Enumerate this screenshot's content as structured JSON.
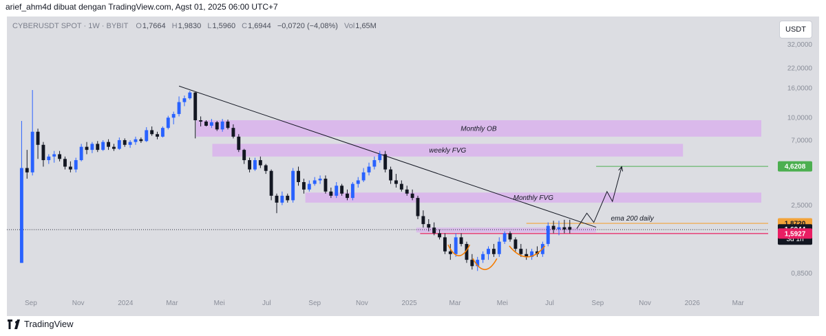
{
  "header": {
    "author_line": "arief_ahm4d dibuat dengan TradingView.com, Agst 01, 2025 06:00 UTC+7"
  },
  "legend": {
    "symbol": "CYBERUSDT SPOT · 1W · BYBIT",
    "o_label": "O",
    "open": "1,7664",
    "h_label": "H",
    "high": "1,9830",
    "l_label": "L",
    "low": "1,5960",
    "c_label": "C",
    "close": "1,6944",
    "change": "−0,0720 (−4,08%)",
    "vol_label": "Vol",
    "volume": "1,65M"
  },
  "currency_button": "USDT",
  "footer": {
    "brand": "TradingView"
  },
  "colors": {
    "up": "#2962ff",
    "down": "#131722",
    "zone": "#d9b3ec",
    "trendline": "#131722",
    "ema": "#f2a33a",
    "support": "#e91e63",
    "target": "#4caf50",
    "pattern": "#f57c00",
    "background": "#dcdde2"
  },
  "chart_data": {
    "type": "candlestick",
    "y_scale": "log",
    "y_ticks": [
      {
        "value": 32,
        "label": "32,0000"
      },
      {
        "value": 22,
        "label": "22,0000"
      },
      {
        "value": 16,
        "label": "16,0000"
      },
      {
        "value": 10,
        "label": "10,0000"
      },
      {
        "value": 7,
        "label": "7,0000"
      },
      {
        "value": 2.5,
        "label": "2,5000"
      },
      {
        "value": 0.85,
        "label": "0,8500"
      }
    ],
    "x_ticks": [
      {
        "date": "2023-09",
        "label": "Sep"
      },
      {
        "date": "2023-11",
        "label": "Nov"
      },
      {
        "date": "2024-01",
        "label": "2024"
      },
      {
        "date": "2024-03",
        "label": "Mar"
      },
      {
        "date": "2024-05",
        "label": "Mei"
      },
      {
        "date": "2024-07",
        "label": "Jul"
      },
      {
        "date": "2024-09",
        "label": "Sep"
      },
      {
        "date": "2024-11",
        "label": "Nov"
      },
      {
        "date": "2025-01",
        "label": "2025"
      },
      {
        "date": "2025-03",
        "label": "Mar"
      },
      {
        "date": "2025-05",
        "label": "Mei"
      },
      {
        "date": "2025-07",
        "label": "Jul"
      },
      {
        "date": "2025-09",
        "label": "Sep"
      },
      {
        "date": "2025-11",
        "label": "Nov"
      },
      {
        "date": "2026-01",
        "label": "2026"
      },
      {
        "date": "2026-03",
        "label": "Mar"
      }
    ],
    "price_labels": [
      {
        "value": 4.6208,
        "text": "4,6208",
        "role": "target"
      },
      {
        "value": 1.872,
        "text": "1,8720",
        "role": "ema"
      },
      {
        "value": 1.6944,
        "text": "1,6944",
        "sub": "3d 1h",
        "role": "last"
      },
      {
        "value": 1.5927,
        "text": "1,5927",
        "role": "support"
      }
    ],
    "zones": [
      {
        "label": "Monthly OB",
        "from": "2024-04-01",
        "to": "2026-03-31",
        "top": 9.6,
        "bottom": 7.4
      },
      {
        "label": "weekly FVG",
        "from": "2024-04-22",
        "to": "2025-12-20",
        "top": 6.6,
        "bottom": 5.4
      },
      {
        "label": "Monthly FVG",
        "from": "2024-08-20",
        "to": "2026-03-31",
        "top": 3.05,
        "bottom": 2.6
      },
      {
        "label": "",
        "from": "2025-01-10",
        "to": "2025-08-30",
        "top": 1.75,
        "bottom": 1.62
      }
    ],
    "trendline": {
      "start": {
        "date": "2024-03-10",
        "value": 16.5
      },
      "end": {
        "date": "2025-08-30",
        "value": 1.76
      }
    },
    "ema_line": {
      "label": "ema 200 daily",
      "value": 1.872,
      "from": "2025-06-01"
    },
    "support_line": {
      "value": 1.5927,
      "from": "2025-01-15"
    },
    "target_line": {
      "value": 4.6208,
      "from": "2025-08-30"
    },
    "last_price_line": 1.6944,
    "projection": [
      {
        "date": "2025-08-05",
        "value": 1.72
      },
      {
        "date": "2025-08-18",
        "value": 2.2
      },
      {
        "date": "2025-08-27",
        "value": 1.9
      },
      {
        "date": "2025-09-13",
        "value": 3.1
      },
      {
        "date": "2025-09-20",
        "value": 2.65
      },
      {
        "date": "2025-10-02",
        "value": 4.6
      }
    ],
    "pattern_arcs": [
      {
        "from": "2025-02-20",
        "to": "2025-03-20",
        "bottom": 1.12
      },
      {
        "from": "2025-03-24",
        "to": "2025-04-24",
        "bottom": 0.9
      },
      {
        "from": "2025-05-10",
        "to": "2025-06-25",
        "bottom": 1.1
      }
    ],
    "candles": [
      {
        "t": "2023-08-20",
        "o": 1.0,
        "h": 9.5,
        "l": 1.0,
        "c": 4.5
      },
      {
        "t": "2023-08-27",
        "o": 4.5,
        "h": 6.0,
        "l": 3.8,
        "c": 4.2
      },
      {
        "t": "2023-09-03",
        "o": 4.2,
        "h": 15.5,
        "l": 4.0,
        "c": 8.0
      },
      {
        "t": "2023-09-10",
        "o": 8.0,
        "h": 8.4,
        "l": 5.2,
        "c": 6.5
      },
      {
        "t": "2023-09-17",
        "o": 6.5,
        "h": 6.8,
        "l": 4.6,
        "c": 5.1
      },
      {
        "t": "2023-09-24",
        "o": 5.1,
        "h": 5.6,
        "l": 4.8,
        "c": 5.4
      },
      {
        "t": "2023-10-01",
        "o": 5.4,
        "h": 5.9,
        "l": 4.9,
        "c": 5.6
      },
      {
        "t": "2023-10-08",
        "o": 5.6,
        "h": 5.9,
        "l": 5.0,
        "c": 5.2
      },
      {
        "t": "2023-10-15",
        "o": 5.2,
        "h": 5.4,
        "l": 4.4,
        "c": 4.6
      },
      {
        "t": "2023-10-22",
        "o": 4.6,
        "h": 5.0,
        "l": 4.2,
        "c": 4.4
      },
      {
        "t": "2023-10-29",
        "o": 4.4,
        "h": 5.3,
        "l": 4.2,
        "c": 5.1
      },
      {
        "t": "2023-11-05",
        "o": 5.1,
        "h": 6.6,
        "l": 5.0,
        "c": 6.3
      },
      {
        "t": "2023-11-12",
        "o": 6.3,
        "h": 6.8,
        "l": 5.6,
        "c": 6.0
      },
      {
        "t": "2023-11-19",
        "o": 6.0,
        "h": 6.8,
        "l": 5.7,
        "c": 6.6
      },
      {
        "t": "2023-11-26",
        "o": 6.6,
        "h": 6.9,
        "l": 5.8,
        "c": 6.0
      },
      {
        "t": "2023-12-03",
        "o": 6.0,
        "h": 7.0,
        "l": 5.9,
        "c": 6.8
      },
      {
        "t": "2023-12-10",
        "o": 6.8,
        "h": 7.1,
        "l": 6.0,
        "c": 6.3
      },
      {
        "t": "2023-12-17",
        "o": 6.3,
        "h": 6.6,
        "l": 5.9,
        "c": 6.1
      },
      {
        "t": "2023-12-24",
        "o": 6.1,
        "h": 7.3,
        "l": 6.0,
        "c": 7.0
      },
      {
        "t": "2023-12-31",
        "o": 7.0,
        "h": 7.2,
        "l": 6.3,
        "c": 6.5
      },
      {
        "t": "2024-01-07",
        "o": 6.5,
        "h": 7.0,
        "l": 6.2,
        "c": 6.8
      },
      {
        "t": "2024-01-14",
        "o": 6.8,
        "h": 7.4,
        "l": 6.5,
        "c": 7.1
      },
      {
        "t": "2024-01-21",
        "o": 7.1,
        "h": 7.3,
        "l": 6.7,
        "c": 6.9
      },
      {
        "t": "2024-01-28",
        "o": 6.9,
        "h": 8.6,
        "l": 6.8,
        "c": 8.2
      },
      {
        "t": "2024-02-04",
        "o": 8.2,
        "h": 8.7,
        "l": 7.5,
        "c": 7.7
      },
      {
        "t": "2024-02-11",
        "o": 7.7,
        "h": 8.0,
        "l": 7.1,
        "c": 7.4
      },
      {
        "t": "2024-02-18",
        "o": 7.4,
        "h": 8.7,
        "l": 7.3,
        "c": 8.5
      },
      {
        "t": "2024-02-25",
        "o": 8.5,
        "h": 10.3,
        "l": 8.3,
        "c": 10.0
      },
      {
        "t": "2024-03-03",
        "o": 10.0,
        "h": 11.0,
        "l": 9.0,
        "c": 10.6
      },
      {
        "t": "2024-03-10",
        "o": 10.6,
        "h": 14.0,
        "l": 10.2,
        "c": 12.8
      },
      {
        "t": "2024-03-17",
        "o": 12.8,
        "h": 14.2,
        "l": 12.0,
        "c": 13.6
      },
      {
        "t": "2024-03-24",
        "o": 13.6,
        "h": 15.3,
        "l": 13.3,
        "c": 14.9
      },
      {
        "t": "2024-03-31",
        "o": 14.9,
        "h": 15.0,
        "l": 7.2,
        "c": 9.6
      },
      {
        "t": "2024-04-07",
        "o": 9.6,
        "h": 10.2,
        "l": 8.7,
        "c": 9.4
      },
      {
        "t": "2024-04-14",
        "o": 9.4,
        "h": 9.6,
        "l": 8.7,
        "c": 8.8
      },
      {
        "t": "2024-04-21",
        "o": 8.8,
        "h": 9.8,
        "l": 8.5,
        "c": 9.3
      },
      {
        "t": "2024-04-28",
        "o": 9.3,
        "h": 9.5,
        "l": 8.1,
        "c": 8.3
      },
      {
        "t": "2024-05-05",
        "o": 8.3,
        "h": 9.8,
        "l": 8.0,
        "c": 9.4
      },
      {
        "t": "2024-05-12",
        "o": 9.4,
        "h": 9.7,
        "l": 8.3,
        "c": 8.5
      },
      {
        "t": "2024-05-19",
        "o": 8.5,
        "h": 9.0,
        "l": 7.2,
        "c": 7.4
      },
      {
        "t": "2024-05-26",
        "o": 7.4,
        "h": 7.7,
        "l": 5.8,
        "c": 6.0
      },
      {
        "t": "2024-06-02",
        "o": 6.0,
        "h": 6.1,
        "l": 4.8,
        "c": 5.1
      },
      {
        "t": "2024-06-09",
        "o": 5.1,
        "h": 5.3,
        "l": 4.2,
        "c": 4.4
      },
      {
        "t": "2024-06-16",
        "o": 4.4,
        "h": 5.3,
        "l": 4.3,
        "c": 5.1
      },
      {
        "t": "2024-06-23",
        "o": 5.1,
        "h": 5.4,
        "l": 4.5,
        "c": 4.7
      },
      {
        "t": "2024-06-30",
        "o": 4.7,
        "h": 4.8,
        "l": 4.1,
        "c": 4.3
      },
      {
        "t": "2024-07-07",
        "o": 4.3,
        "h": 4.4,
        "l": 2.7,
        "c": 2.9
      },
      {
        "t": "2024-07-14",
        "o": 2.9,
        "h": 3.0,
        "l": 2.2,
        "c": 2.6
      },
      {
        "t": "2024-07-21",
        "o": 2.6,
        "h": 3.1,
        "l": 2.5,
        "c": 2.9
      },
      {
        "t": "2024-07-28",
        "o": 2.9,
        "h": 3.0,
        "l": 2.6,
        "c": 2.7
      },
      {
        "t": "2024-08-04",
        "o": 2.7,
        "h": 4.5,
        "l": 2.6,
        "c": 4.3
      },
      {
        "t": "2024-08-11",
        "o": 4.3,
        "h": 4.6,
        "l": 3.4,
        "c": 3.6
      },
      {
        "t": "2024-08-18",
        "o": 3.6,
        "h": 3.8,
        "l": 3.0,
        "c": 3.2
      },
      {
        "t": "2024-08-25",
        "o": 3.2,
        "h": 3.7,
        "l": 3.1,
        "c": 3.5
      },
      {
        "t": "2024-09-01",
        "o": 3.5,
        "h": 3.9,
        "l": 3.4,
        "c": 3.7
      },
      {
        "t": "2024-09-08",
        "o": 3.7,
        "h": 4.0,
        "l": 3.5,
        "c": 3.8
      },
      {
        "t": "2024-09-15",
        "o": 3.8,
        "h": 4.0,
        "l": 3.0,
        "c": 3.1
      },
      {
        "t": "2024-09-22",
        "o": 3.1,
        "h": 3.3,
        "l": 2.8,
        "c": 2.9
      },
      {
        "t": "2024-09-29",
        "o": 2.9,
        "h": 3.6,
        "l": 2.8,
        "c": 3.4
      },
      {
        "t": "2024-10-06",
        "o": 3.4,
        "h": 3.5,
        "l": 2.9,
        "c": 3.0
      },
      {
        "t": "2024-10-13",
        "o": 3.0,
        "h": 3.2,
        "l": 2.7,
        "c": 2.8
      },
      {
        "t": "2024-10-20",
        "o": 2.8,
        "h": 3.6,
        "l": 2.7,
        "c": 3.5
      },
      {
        "t": "2024-10-27",
        "o": 3.5,
        "h": 3.9,
        "l": 3.3,
        "c": 3.7
      },
      {
        "t": "2024-11-03",
        "o": 3.7,
        "h": 4.5,
        "l": 3.6,
        "c": 4.2
      },
      {
        "t": "2024-11-10",
        "o": 4.2,
        "h": 4.9,
        "l": 4.0,
        "c": 4.6
      },
      {
        "t": "2024-11-17",
        "o": 4.6,
        "h": 5.4,
        "l": 4.4,
        "c": 5.1
      },
      {
        "t": "2024-11-24",
        "o": 5.1,
        "h": 5.9,
        "l": 4.9,
        "c": 5.6
      },
      {
        "t": "2024-12-01",
        "o": 5.6,
        "h": 5.9,
        "l": 4.2,
        "c": 4.4
      },
      {
        "t": "2024-12-08",
        "o": 4.4,
        "h": 4.6,
        "l": 3.5,
        "c": 3.7
      },
      {
        "t": "2024-12-15",
        "o": 3.7,
        "h": 4.1,
        "l": 3.3,
        "c": 3.5
      },
      {
        "t": "2024-12-22",
        "o": 3.5,
        "h": 3.7,
        "l": 3.1,
        "c": 3.2
      },
      {
        "t": "2024-12-29",
        "o": 3.2,
        "h": 3.4,
        "l": 2.9,
        "c": 3.0
      },
      {
        "t": "2025-01-05",
        "o": 3.0,
        "h": 3.2,
        "l": 2.7,
        "c": 2.8
      },
      {
        "t": "2025-01-12",
        "o": 2.8,
        "h": 2.9,
        "l": 2.0,
        "c": 2.1
      },
      {
        "t": "2025-01-19",
        "o": 2.1,
        "h": 2.3,
        "l": 1.75,
        "c": 1.85
      },
      {
        "t": "2025-01-26",
        "o": 1.85,
        "h": 2.0,
        "l": 1.65,
        "c": 1.75
      },
      {
        "t": "2025-02-02",
        "o": 1.75,
        "h": 1.9,
        "l": 1.55,
        "c": 1.6
      },
      {
        "t": "2025-02-09",
        "o": 1.6,
        "h": 1.7,
        "l": 1.45,
        "c": 1.5
      },
      {
        "t": "2025-02-16",
        "o": 1.5,
        "h": 1.6,
        "l": 1.15,
        "c": 1.2
      },
      {
        "t": "2025-02-23",
        "o": 1.2,
        "h": 1.35,
        "l": 1.05,
        "c": 1.15
      },
      {
        "t": "2025-03-02",
        "o": 1.15,
        "h": 1.6,
        "l": 1.1,
        "c": 1.5
      },
      {
        "t": "2025-03-09",
        "o": 1.5,
        "h": 1.6,
        "l": 1.3,
        "c": 1.35
      },
      {
        "t": "2025-03-16",
        "o": 1.35,
        "h": 1.4,
        "l": 1.0,
        "c": 1.05
      },
      {
        "t": "2025-03-23",
        "o": 1.05,
        "h": 1.15,
        "l": 0.9,
        "c": 0.95
      },
      {
        "t": "2025-03-30",
        "o": 0.95,
        "h": 1.1,
        "l": 0.88,
        "c": 1.05
      },
      {
        "t": "2025-04-06",
        "o": 1.05,
        "h": 1.2,
        "l": 1.0,
        "c": 1.15
      },
      {
        "t": "2025-04-13",
        "o": 1.15,
        "h": 1.3,
        "l": 1.05,
        "c": 1.25
      },
      {
        "t": "2025-04-20",
        "o": 1.25,
        "h": 1.35,
        "l": 1.1,
        "c": 1.15
      },
      {
        "t": "2025-04-27",
        "o": 1.15,
        "h": 1.5,
        "l": 1.1,
        "c": 1.4
      },
      {
        "t": "2025-05-04",
        "o": 1.4,
        "h": 1.65,
        "l": 1.35,
        "c": 1.6
      },
      {
        "t": "2025-05-11",
        "o": 1.6,
        "h": 1.65,
        "l": 1.4,
        "c": 1.45
      },
      {
        "t": "2025-05-18",
        "o": 1.45,
        "h": 1.5,
        "l": 1.2,
        "c": 1.25
      },
      {
        "t": "2025-05-25",
        "o": 1.25,
        "h": 1.35,
        "l": 1.1,
        "c": 1.15
      },
      {
        "t": "2025-06-01",
        "o": 1.15,
        "h": 1.25,
        "l": 1.05,
        "c": 1.1
      },
      {
        "t": "2025-06-08",
        "o": 1.1,
        "h": 1.25,
        "l": 1.05,
        "c": 1.2
      },
      {
        "t": "2025-06-15",
        "o": 1.2,
        "h": 1.3,
        "l": 1.1,
        "c": 1.15
      },
      {
        "t": "2025-06-22",
        "o": 1.15,
        "h": 1.4,
        "l": 1.1,
        "c": 1.35
      },
      {
        "t": "2025-06-29",
        "o": 1.35,
        "h": 1.9,
        "l": 1.3,
        "c": 1.8
      },
      {
        "t": "2025-07-06",
        "o": 1.8,
        "h": 1.95,
        "l": 1.6,
        "c": 1.7
      },
      {
        "t": "2025-07-13",
        "o": 1.7,
        "h": 1.95,
        "l": 1.55,
        "c": 1.76
      },
      {
        "t": "2025-07-20",
        "o": 1.76,
        "h": 1.98,
        "l": 1.6,
        "c": 1.7
      },
      {
        "t": "2025-07-27",
        "o": 1.7664,
        "h": 1.983,
        "l": 1.596,
        "c": 1.6944
      }
    ]
  }
}
